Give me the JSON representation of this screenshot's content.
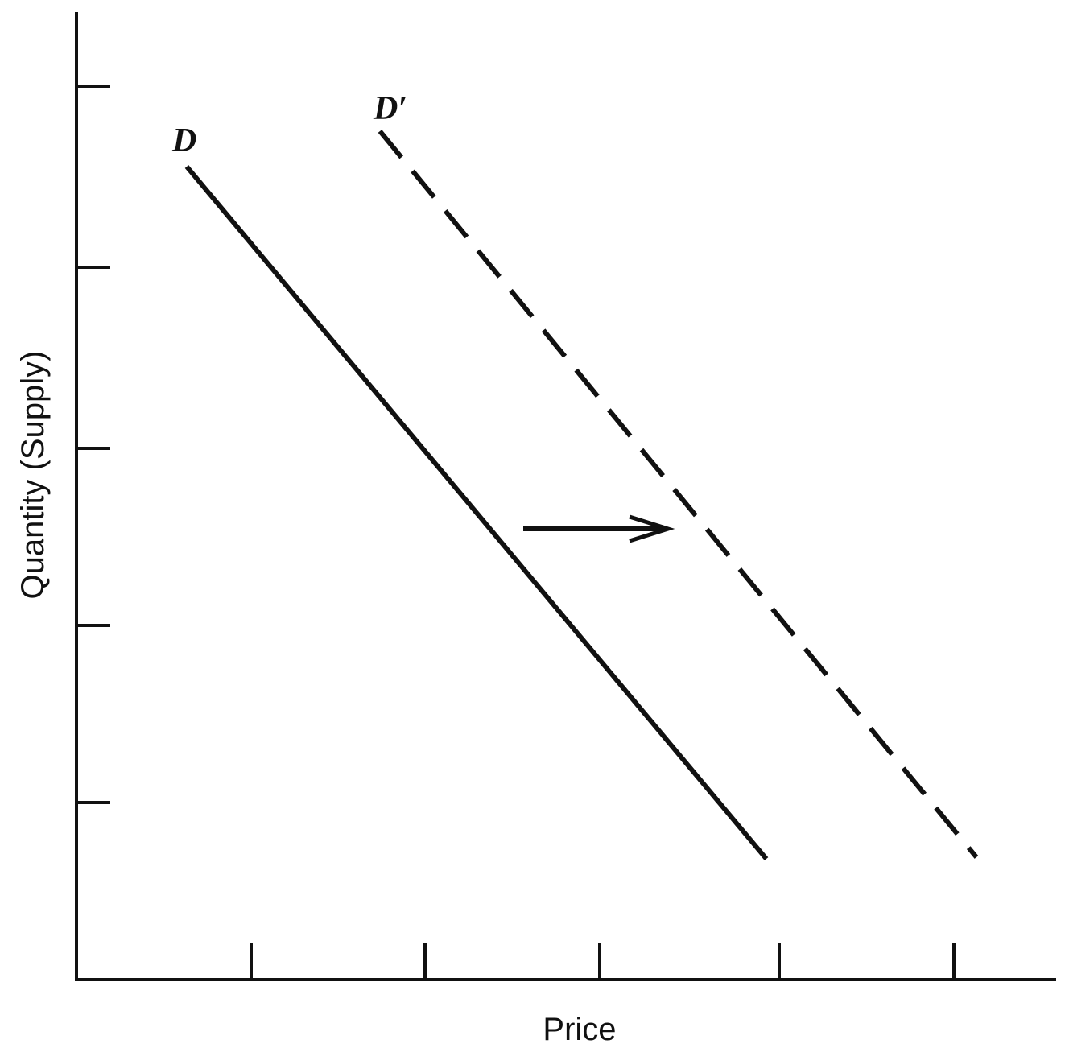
{
  "curves": [
    {
      "label": "D"
    },
    {
      "label": "D′"
    }
  ],
  "axes": {
    "y_label": "Quantity (Supply)",
    "x_label": "Price"
  }
}
